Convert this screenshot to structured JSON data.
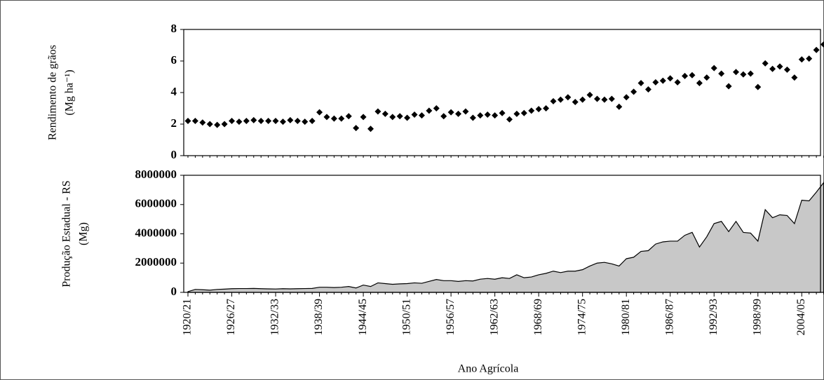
{
  "chart_data": [
    {
      "type": "scatter",
      "y_label": [
        "Rendimento de grãos",
        "(Mg ha⁻¹)"
      ],
      "color": "#000000",
      "values": [
        2.2,
        2.2,
        2.1,
        2.0,
        1.95,
        2.0,
        2.2,
        2.15,
        2.2,
        2.25,
        2.2,
        2.2,
        2.2,
        2.15,
        2.25,
        2.2,
        2.15,
        2.2,
        2.75,
        2.45,
        2.35,
        2.35,
        2.5,
        1.75,
        2.45,
        1.7,
        2.8,
        2.65,
        2.45,
        2.5,
        2.4,
        2.6,
        2.55,
        2.85,
        3.0,
        2.5,
        2.75,
        2.65,
        2.8,
        2.4,
        2.55,
        2.6,
        2.55,
        2.7,
        2.3,
        2.65,
        2.7,
        2.85,
        2.95,
        3.0,
        3.45,
        3.55,
        3.7,
        3.4,
        3.55,
        3.85,
        3.6,
        3.55,
        3.6,
        3.1,
        3.7,
        4.05,
        4.6,
        4.2,
        4.65,
        4.75,
        4.9,
        4.65,
        5.05,
        5.1,
        4.6,
        4.95,
        5.55,
        5.2,
        4.4,
        5.3,
        5.15,
        5.2,
        4.35,
        5.85,
        5.5,
        5.65,
        5.45,
        4.95,
        6.1,
        6.15,
        6.7,
        7.05
      ],
      "ylim": [
        0,
        8
      ],
      "yticks": [
        0,
        2,
        4,
        6,
        8
      ]
    },
    {
      "type": "area",
      "y_label": [
        "Produção Estadual - RS",
        "(Mg)"
      ],
      "x_label": "Ano Agrícola",
      "color": "#c8c8c8",
      "categories": [
        "1920/21",
        null,
        null,
        null,
        null,
        null,
        "1926/27",
        null,
        null,
        null,
        null,
        null,
        "1932/33",
        null,
        null,
        null,
        null,
        null,
        "1938/39",
        null,
        null,
        null,
        null,
        null,
        "1944/45",
        null,
        null,
        null,
        null,
        null,
        "1950/51",
        null,
        null,
        null,
        null,
        null,
        "1956/57",
        null,
        null,
        null,
        null,
        null,
        "1962/63",
        null,
        null,
        null,
        null,
        null,
        "1968/69",
        null,
        null,
        null,
        null,
        null,
        "1974/75",
        null,
        null,
        null,
        null,
        null,
        "1980/81",
        null,
        null,
        null,
        null,
        null,
        "1986/87",
        null,
        null,
        null,
        null,
        null,
        "1992/93",
        null,
        null,
        null,
        null,
        null,
        "1998/99",
        null,
        null,
        null,
        null,
        null,
        "2004/05",
        null,
        null,
        null
      ],
      "values": [
        50000,
        200000,
        180000,
        150000,
        200000,
        220000,
        250000,
        260000,
        260000,
        270000,
        250000,
        240000,
        230000,
        250000,
        240000,
        250000,
        260000,
        270000,
        350000,
        350000,
        330000,
        350000,
        400000,
        300000,
        500000,
        400000,
        650000,
        600000,
        550000,
        580000,
        600000,
        650000,
        620000,
        750000,
        880000,
        800000,
        800000,
        750000,
        800000,
        780000,
        900000,
        950000,
        900000,
        1000000,
        950000,
        1200000,
        1000000,
        1050000,
        1200000,
        1300000,
        1450000,
        1350000,
        1450000,
        1450000,
        1550000,
        1800000,
        2000000,
        2050000,
        1950000,
        1800000,
        2300000,
        2400000,
        2800000,
        2850000,
        3300000,
        3450000,
        3500000,
        3500000,
        3900000,
        4100000,
        3100000,
        3800000,
        4700000,
        4850000,
        4150000,
        4850000,
        4100000,
        4050000,
        3500000,
        5650000,
        5100000,
        5300000,
        5250000,
        4700000,
        6300000,
        6250000,
        6850000,
        7500000
      ],
      "ylim": [
        0,
        8000000
      ],
      "yticks": [
        0,
        2000000,
        4000000,
        6000000,
        8000000
      ]
    }
  ]
}
